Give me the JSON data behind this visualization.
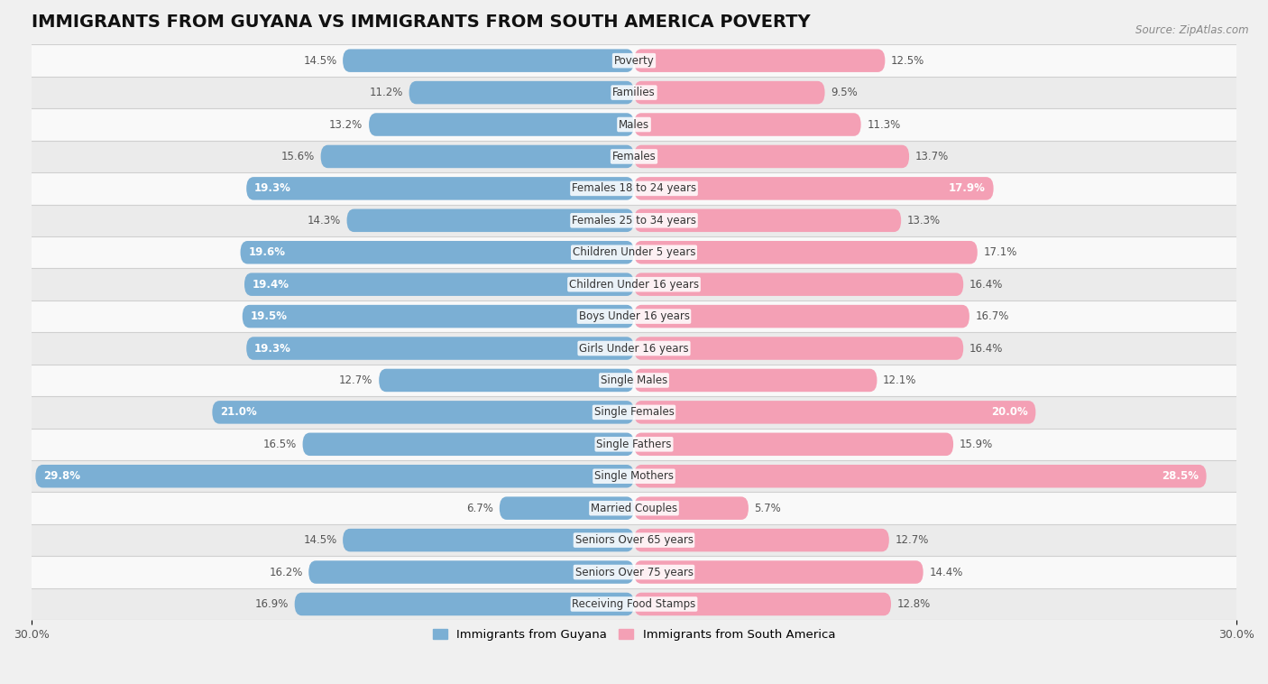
{
  "title": "IMMIGRANTS FROM GUYANA VS IMMIGRANTS FROM SOUTH AMERICA POVERTY",
  "source": "Source: ZipAtlas.com",
  "categories": [
    "Poverty",
    "Families",
    "Males",
    "Females",
    "Females 18 to 24 years",
    "Females 25 to 34 years",
    "Children Under 5 years",
    "Children Under 16 years",
    "Boys Under 16 years",
    "Girls Under 16 years",
    "Single Males",
    "Single Females",
    "Single Fathers",
    "Single Mothers",
    "Married Couples",
    "Seniors Over 65 years",
    "Seniors Over 75 years",
    "Receiving Food Stamps"
  ],
  "guyana_values": [
    14.5,
    11.2,
    13.2,
    15.6,
    19.3,
    14.3,
    19.6,
    19.4,
    19.5,
    19.3,
    12.7,
    21.0,
    16.5,
    29.8,
    6.7,
    14.5,
    16.2,
    16.9
  ],
  "south_america_values": [
    12.5,
    9.5,
    11.3,
    13.7,
    17.9,
    13.3,
    17.1,
    16.4,
    16.7,
    16.4,
    12.1,
    20.0,
    15.9,
    28.5,
    5.7,
    12.7,
    14.4,
    12.8
  ],
  "guyana_color": "#7bafd4",
  "south_america_color": "#f4a0b5",
  "background_color": "#f0f0f0",
  "row_color_even": "#f9f9f9",
  "row_color_odd": "#ebebeb",
  "xlim": 30.0,
  "legend_guyana": "Immigrants from Guyana",
  "legend_south_america": "Immigrants from South America",
  "title_fontsize": 14,
  "label_fontsize": 8.5,
  "value_fontsize": 8.5,
  "white_text_threshold": 17.5
}
